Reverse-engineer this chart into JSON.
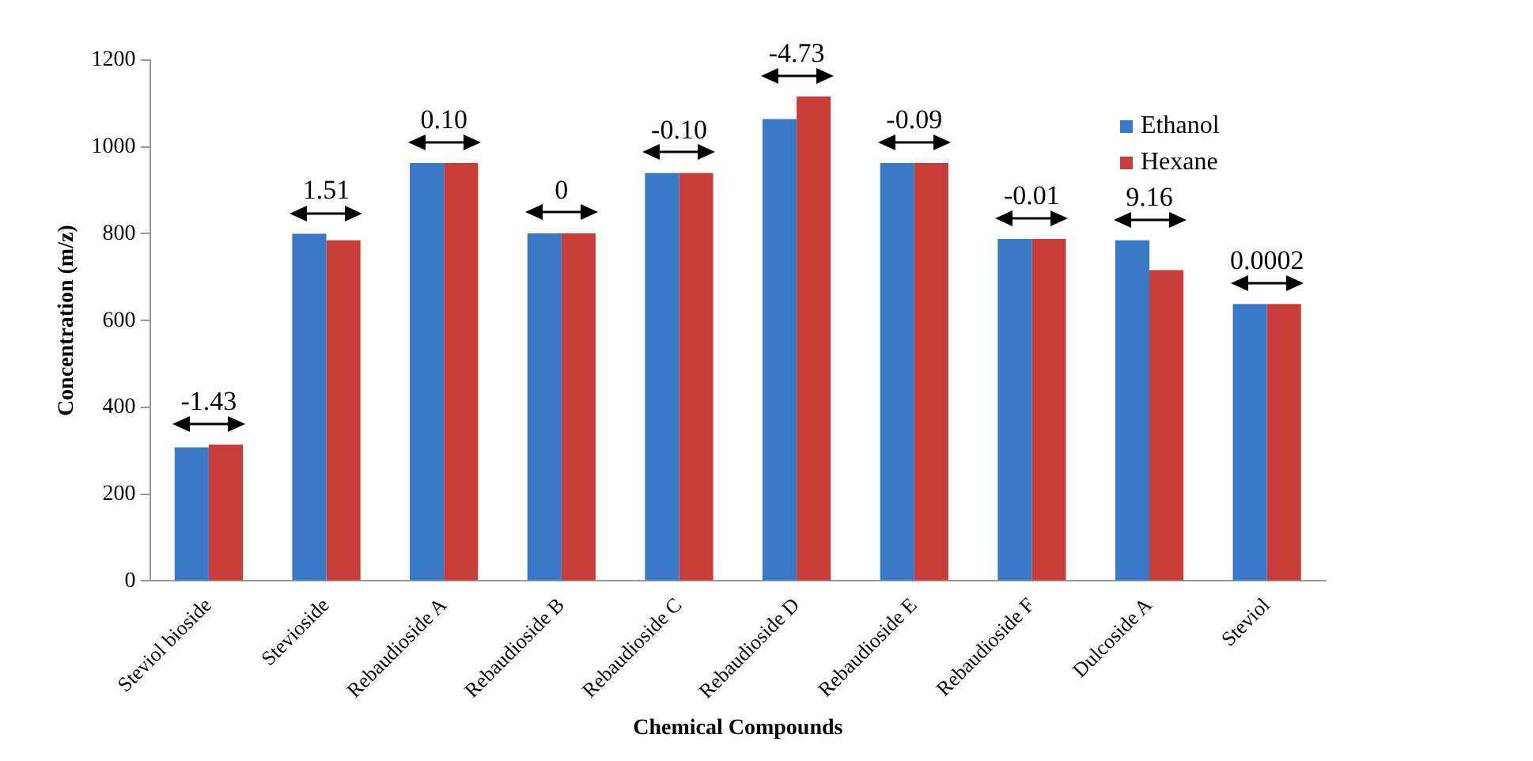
{
  "chart_data": {
    "type": "bar",
    "xlabel": "Chemical Compounds",
    "ylabel": "Concentration (m/z)",
    "categories": [
      "Steviol bioside",
      "Stevioside",
      "Rebaudioside A",
      "Rebaudioside B",
      "Rebaudioside C",
      "Rebaudioside D",
      "Rebaudioside E",
      "Rebaudioside F",
      "Dulcoside A",
      "Steviol"
    ],
    "series": [
      {
        "name": "Ethanol",
        "color": "#3a78c8",
        "values": [
          308,
          800,
          963,
          801,
          940,
          1064,
          963,
          788,
          785,
          638
        ]
      },
      {
        "name": "Hexane",
        "color": "#c83c3a",
        "values": [
          314,
          785,
          963,
          801,
          940,
          1116,
          963,
          788,
          716,
          638
        ]
      }
    ],
    "ylim": [
      0,
      1200
    ],
    "yticks": [
      0,
      200,
      400,
      600,
      800,
      1000,
      1200
    ],
    "grid": false,
    "legend": "top right",
    "annotations": [
      "-1.43",
      "1.51",
      "0.10",
      "0",
      "-0.10",
      "-4.73",
      "-0.09",
      "-0.01",
      "9.16",
      "0.0002"
    ]
  }
}
